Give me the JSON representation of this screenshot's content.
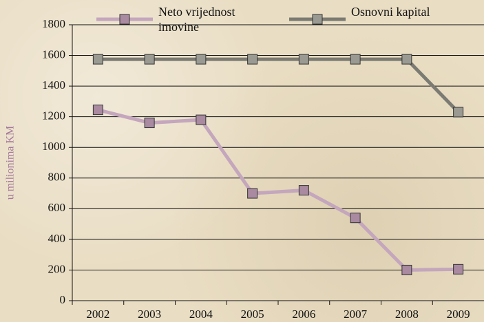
{
  "chart_data": {
    "type": "line",
    "ylabel": "u milionima KM",
    "categories": [
      "2002",
      "2003",
      "2004",
      "2005",
      "2006",
      "2007",
      "2008",
      "2009"
    ],
    "series": [
      {
        "name": "Neto vrijednost imovine",
        "color": "#c4a6bd",
        "marker_color": "#a98aa1",
        "values": [
          1245,
          1160,
          1180,
          700,
          720,
          540,
          200,
          205
        ]
      },
      {
        "name": "Osnovni kapital",
        "color": "#7b7b73",
        "marker_color": "#9a9a92",
        "values": [
          1575,
          1575,
          1575,
          1575,
          1575,
          1575,
          1575,
          1230
        ]
      }
    ],
    "ylim": [
      0,
      1800
    ],
    "yticks": [
      0,
      200,
      400,
      600,
      800,
      1000,
      1200,
      1400,
      1600,
      1800
    ],
    "grid": true,
    "legend": "top"
  }
}
